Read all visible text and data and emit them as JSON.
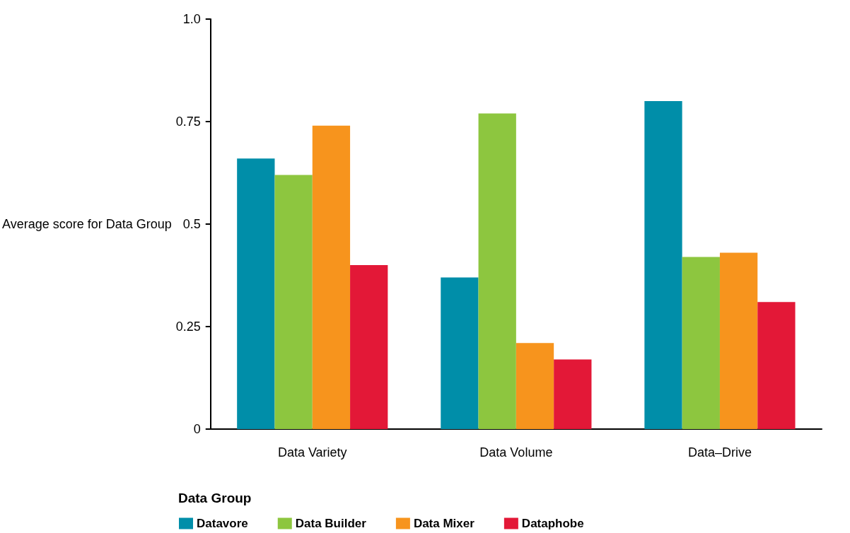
{
  "chart_data": {
    "type": "bar",
    "ylabel": "Average score for Data Group",
    "legend_title": "Data Group",
    "categories": [
      "Data Variety",
      "Data Volume",
      "Data–Drive"
    ],
    "series": [
      {
        "name": "Datavore",
        "color": "#008ea9",
        "values": [
          0.66,
          0.37,
          0.8
        ]
      },
      {
        "name": "Data Builder",
        "color": "#8dc63f",
        "values": [
          0.62,
          0.77,
          0.42
        ]
      },
      {
        "name": "Data Mixer",
        "color": "#f7941d",
        "values": [
          0.74,
          0.21,
          0.43
        ]
      },
      {
        "name": "Dataphobe",
        "color": "#e31837",
        "values": [
          0.4,
          0.17,
          0.31
        ]
      }
    ],
    "ylim": [
      0,
      1
    ],
    "yticks": [
      0,
      0.25,
      0.5,
      0.75,
      {
        "value": 1,
        "label": "1.0"
      }
    ],
    "grid": false,
    "legend": "bottom"
  }
}
